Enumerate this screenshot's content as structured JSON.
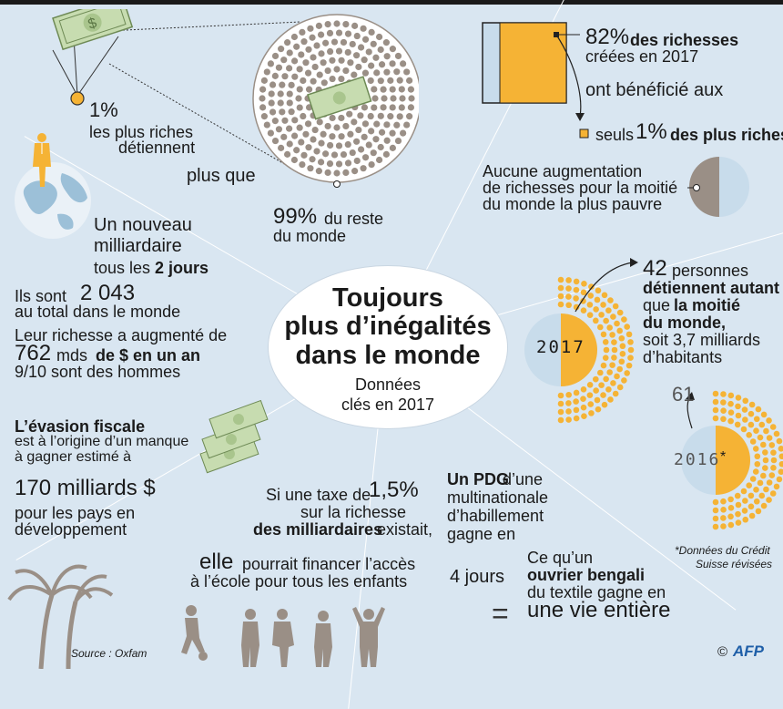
{
  "title": {
    "line1": "Toujours",
    "line2": "plus d’inégalités",
    "line3": "dans le monde",
    "sub1": "Données",
    "sub2": "clés en 2017"
  },
  "top_left": {
    "pct": "1%",
    "line1": "les plus riches",
    "line2": "détiennent",
    "plus_que": "plus que",
    "pct99": "99%",
    "reste": "du reste",
    "monde": "du monde"
  },
  "top_right": {
    "pct82": "82%",
    "richesses": "des richesses",
    "creees": "créées en 2017",
    "ont": "ont bénéficié aux",
    "seuls": "seuls",
    "pct1": "1%",
    "plus_riches": "des plus riches",
    "aucune1": "Aucune augmentation",
    "aucune2": "de richesses pour la moitié",
    "aucune3": "du monde la plus pauvre"
  },
  "left_middle": {
    "nouveau": "Un nouveau",
    "milliardaire": "milliardaire",
    "tous": "tous les",
    "jours": "2 jours",
    "sont": "Ils sont",
    "count": "2 043",
    "total": "au total dans le monde",
    "leur": "Leur richesse a augmenté de",
    "mds_num": "762",
    "mds": "mds",
    "de_an": "de $ en un an",
    "hommes": "9/10 sont des hommes"
  },
  "right_middle": {
    "n42": "42",
    "personnes": "personnes",
    "detiennent": "détiennent autant",
    "que": "que",
    "moitie": "la moitié",
    "du_monde": "du monde,",
    "soit": "soit 3,7 milliards",
    "habitants": "d’habitants",
    "year2017": "2017",
    "n61": "61",
    "year2016": "2016",
    "star": "*",
    "note1": "*Données du Crédit",
    "note2": "Suisse révisées"
  },
  "bottom_left": {
    "evasion": "L’évasion fiscale",
    "est": "est à l’origine d’un manque",
    "gagner": "à gagner estimé à",
    "amount": "170 milliards $",
    "pays": "pour les pays en",
    "dev": "développement",
    "source": "Source : Oxfam"
  },
  "bottom_mid": {
    "si": "Si une taxe de",
    "pct": "1,5%",
    "sur": "sur la richesse",
    "des": "des milliardaires",
    "existait": "existait,",
    "elle": "elle",
    "pourrait": "pourrait financer l’accès",
    "ecole": "à l’école pour tous les enfants"
  },
  "bottom_right": {
    "pdg": "Un PDG",
    "dune": "d’une",
    "multi": "multinationale",
    "hab": "d’habillement",
    "gagne": "gagne en",
    "jours4": "4 jours",
    "ce": "Ce qu’un",
    "ouvrier": "ouvrier bengali",
    "textile": "du textile gagne en",
    "vie": "une vie entière",
    "equals": "=",
    "copyright": "©",
    "afp": "AFP"
  },
  "colors": {
    "accent": "#f5b335",
    "bg": "#d9e6f1",
    "gray": "#9a8f86",
    "lightblue": "#c8dceb"
  }
}
